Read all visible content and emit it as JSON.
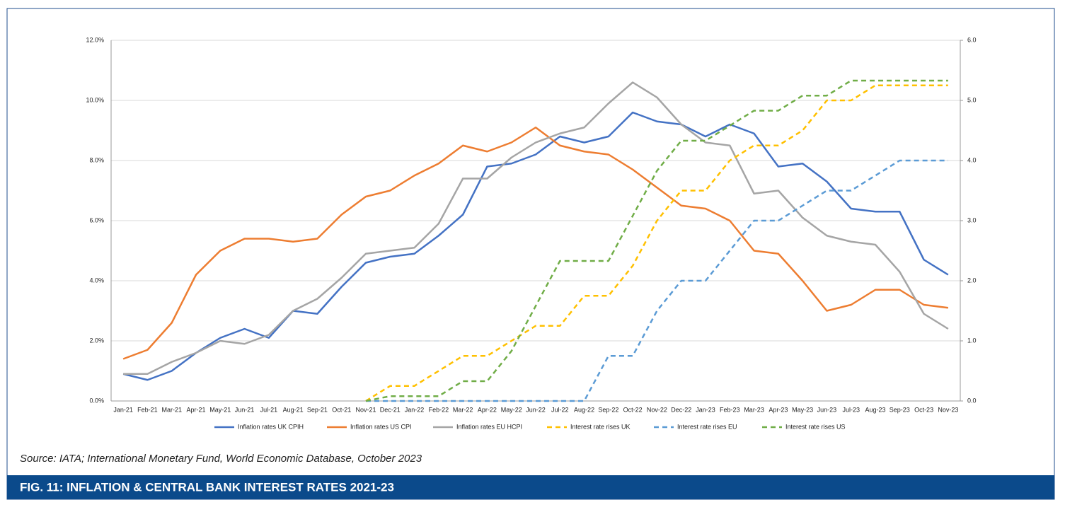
{
  "chart_data": {
    "type": "line",
    "title": "FIG. 11: INFLATION & CENTRAL BANK INTEREST RATES 2021-23",
    "source": "Source: IATA; International Monetary Fund, World Economic Database, October 2023",
    "categories": [
      "Jan-21",
      "Feb-21",
      "Mar-21",
      "Apr-21",
      "May-21",
      "Jun-21",
      "Jul-21",
      "Aug-21",
      "Sep-21",
      "Oct-21",
      "Nov-21",
      "Dec-21",
      "Jan-22",
      "Feb-22",
      "Mar-22",
      "Apr-22",
      "May-22",
      "Jun-22",
      "Jul-22",
      "Aug-22",
      "Sep-22",
      "Oct-22",
      "Nov-22",
      "Dec-22",
      "Jan-23",
      "Feb-23",
      "Mar-23",
      "Apr-23",
      "May-23",
      "Jun-23",
      "Jul-23",
      "Aug-23",
      "Sep-23",
      "Oct-23",
      "Nov-23"
    ],
    "ylim": [
      0,
      12
    ],
    "yticks": [
      {
        "value": 0,
        "label": "0.0%"
      },
      {
        "value": 2,
        "label": "2.0%"
      },
      {
        "value": 4,
        "label": "4.0%"
      },
      {
        "value": 6,
        "label": "6.0%"
      },
      {
        "value": 8,
        "label": "8.0%"
      },
      {
        "value": 10,
        "label": "10.0%"
      },
      {
        "value": 12,
        "label": "12.0%"
      }
    ],
    "y2lim": [
      0,
      6
    ],
    "y2ticks": [
      {
        "value": 0,
        "label": "0.0"
      },
      {
        "value": 1,
        "label": "1.0"
      },
      {
        "value": 2,
        "label": "2.0"
      },
      {
        "value": 3,
        "label": "3.0"
      },
      {
        "value": 4,
        "label": "4.0"
      },
      {
        "value": 5,
        "label": "5.0"
      },
      {
        "value": 6,
        "label": "6.0"
      }
    ],
    "grid": true,
    "legend": "bottom",
    "series": [
      {
        "name": "Inflation rates UK CPIH",
        "color": "#4472c4",
        "line_style": "solid",
        "values": [
          0.9,
          0.7,
          1.0,
          1.6,
          2.1,
          2.4,
          2.1,
          3.0,
          2.9,
          3.8,
          4.6,
          4.8,
          4.9,
          5.5,
          6.2,
          7.8,
          7.9,
          8.2,
          8.8,
          8.6,
          8.8,
          9.6,
          9.3,
          9.2,
          8.8,
          9.2,
          8.9,
          7.8,
          7.9,
          7.3,
          6.4,
          6.3,
          6.3,
          4.7,
          4.2
        ]
      },
      {
        "name": "Inflation rates US CPI",
        "color": "#ed7d31",
        "line_style": "solid",
        "values": [
          1.4,
          1.7,
          2.6,
          4.2,
          5.0,
          5.4,
          5.4,
          5.3,
          5.4,
          6.2,
          6.8,
          7.0,
          7.5,
          7.9,
          8.5,
          8.3,
          8.6,
          9.1,
          8.5,
          8.3,
          8.2,
          7.7,
          7.1,
          6.5,
          6.4,
          6.0,
          5.0,
          4.9,
          4.0,
          3.0,
          3.2,
          3.7,
          3.7,
          3.2,
          3.1
        ]
      },
      {
        "name": "Inflation rates EU HCPI",
        "color": "#a5a5a5",
        "line_style": "solid",
        "values": [
          0.9,
          0.9,
          1.3,
          1.6,
          2.0,
          1.9,
          2.2,
          3.0,
          3.4,
          4.1,
          4.9,
          5.0,
          5.1,
          5.9,
          7.4,
          7.4,
          8.1,
          8.6,
          8.9,
          9.1,
          9.9,
          10.6,
          10.1,
          9.2,
          8.6,
          8.5,
          6.9,
          7.0,
          6.1,
          5.5,
          5.3,
          5.2,
          4.3,
          2.9,
          2.4
        ]
      },
      {
        "name": "Interest rate rises UK",
        "color": "#ffc000",
        "line_style": "dashed",
        "axis": "y2",
        "values": [
          null,
          null,
          null,
          null,
          null,
          null,
          null,
          null,
          null,
          null,
          0,
          0.25,
          0.25,
          0.5,
          0.75,
          0.75,
          1.0,
          1.25,
          1.25,
          1.75,
          1.75,
          2.25,
          3.0,
          3.5,
          3.5,
          4.0,
          4.25,
          4.25,
          4.5,
          5.0,
          5.0,
          5.25,
          5.25,
          5.25,
          5.25
        ]
      },
      {
        "name": "Interest rate rises EU",
        "color": "#5b9bd5",
        "line_style": "dashed",
        "axis": "y2",
        "values": [
          null,
          null,
          null,
          null,
          null,
          null,
          null,
          null,
          null,
          null,
          0,
          0,
          0,
          0,
          0,
          0,
          0,
          0,
          0,
          0,
          0.75,
          0.75,
          1.5,
          2.0,
          2.0,
          2.5,
          3.0,
          3.0,
          3.25,
          3.5,
          3.5,
          3.75,
          4.0,
          4.0,
          4.0
        ]
      },
      {
        "name": "Interest rate rises US",
        "color": "#70ad47",
        "line_style": "dashed",
        "axis": "y2",
        "values": [
          null,
          null,
          null,
          null,
          null,
          null,
          null,
          null,
          null,
          null,
          0,
          0.08,
          0.08,
          0.08,
          0.33,
          0.33,
          0.83,
          1.58,
          2.33,
          2.33,
          2.33,
          3.08,
          3.83,
          4.33,
          4.33,
          4.58,
          4.83,
          4.83,
          5.08,
          5.08,
          5.33,
          5.33,
          5.33,
          5.33,
          5.33
        ]
      }
    ]
  }
}
